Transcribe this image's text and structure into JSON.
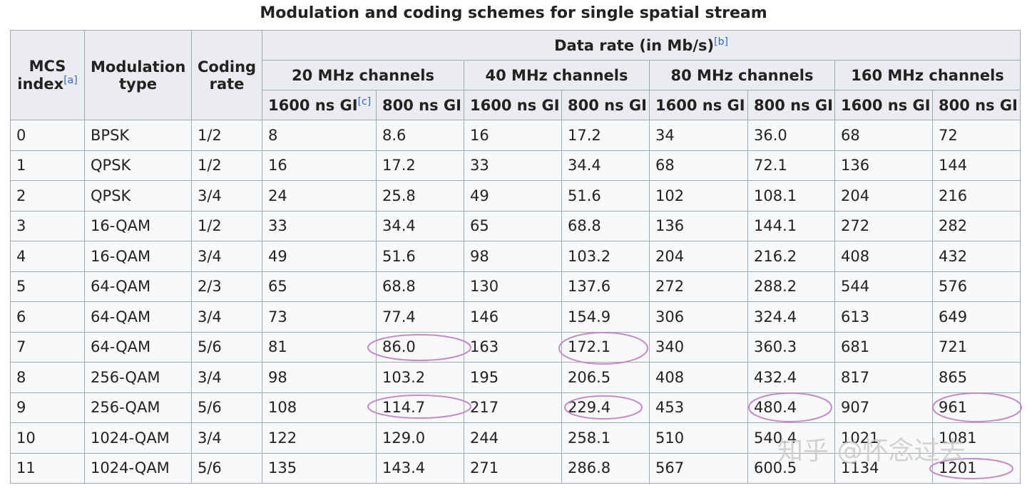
{
  "title": "Modulation and coding schemes for single spatial stream",
  "header": {
    "mcs": [
      "MCS",
      "index"
    ],
    "mcs_note": "[a]",
    "modulation": [
      "Modulation",
      "type"
    ],
    "coding": [
      "Coding",
      "rate"
    ],
    "data_rate": "Data rate (in Mb/s)",
    "data_rate_note": "[b]",
    "channels": [
      "20 MHz channels",
      "40 MHz channels",
      "80 MHz channels",
      "160 MHz channels"
    ],
    "gi": [
      "1600 ns GI",
      "800 ns GI",
      "1600 ns GI",
      "800 ns GI",
      "1600 ns GI",
      "800 ns GI",
      "1600 ns GI",
      "800 ns GI"
    ],
    "gi_note": "[c]"
  },
  "rows": [
    [
      "0",
      "BPSK",
      "1/2",
      "8",
      "8.6",
      "16",
      "17.2",
      "34",
      "36.0",
      "68",
      "72"
    ],
    [
      "1",
      "QPSK",
      "1/2",
      "16",
      "17.2",
      "33",
      "34.4",
      "68",
      "72.1",
      "136",
      "144"
    ],
    [
      "2",
      "QPSK",
      "3/4",
      "24",
      "25.8",
      "49",
      "51.6",
      "102",
      "108.1",
      "204",
      "216"
    ],
    [
      "3",
      "16-QAM",
      "1/2",
      "33",
      "34.4",
      "65",
      "68.8",
      "136",
      "144.1",
      "272",
      "282"
    ],
    [
      "4",
      "16-QAM",
      "3/4",
      "49",
      "51.6",
      "98",
      "103.2",
      "204",
      "216.2",
      "408",
      "432"
    ],
    [
      "5",
      "64-QAM",
      "2/3",
      "65",
      "68.8",
      "130",
      "137.6",
      "272",
      "288.2",
      "544",
      "576"
    ],
    [
      "6",
      "64-QAM",
      "3/4",
      "73",
      "77.4",
      "146",
      "154.9",
      "306",
      "324.4",
      "613",
      "649"
    ],
    [
      "7",
      "64-QAM",
      "5/6",
      "81",
      "86.0",
      "163",
      "172.1",
      "340",
      "360.3",
      "681",
      "721"
    ],
    [
      "8",
      "256-QAM",
      "3/4",
      "98",
      "103.2",
      "195",
      "206.5",
      "408",
      "432.4",
      "817",
      "865"
    ],
    [
      "9",
      "256-QAM",
      "5/6",
      "108",
      "114.7",
      "217",
      "229.4",
      "453",
      "480.4",
      "907",
      "961"
    ],
    [
      "10",
      "1024-QAM",
      "3/4",
      "122",
      "129.0",
      "244",
      "258.1",
      "510",
      "540.4",
      "1021",
      "1081"
    ],
    [
      "11",
      "1024-QAM",
      "5/6",
      "135",
      "143.4",
      "271",
      "286.8",
      "567",
      "600.5",
      "1134",
      "1201"
    ]
  ],
  "watermark": "知乎 @怀念过去"
}
